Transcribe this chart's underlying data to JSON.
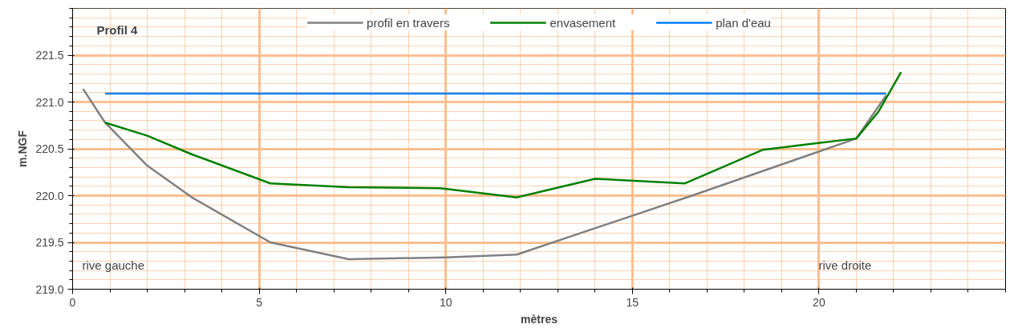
{
  "chart_data": {
    "type": "line",
    "title": "Profil 4",
    "xlabel": "mètres",
    "ylabel": "m.NGF",
    "xlim": [
      0,
      25
    ],
    "xticks": [
      0,
      5,
      10,
      15,
      20
    ],
    "ylim": [
      219.0,
      222.0
    ],
    "yticks": [
      {
        "value": 219.0,
        "label": "219.0"
      },
      {
        "value": 219.5,
        "label": "219.5"
      },
      {
        "value": 220.0,
        "label": "220.0"
      },
      {
        "value": 220.5,
        "label": "220.5"
      },
      {
        "value": 221.0,
        "label": "221.0"
      },
      {
        "value": 221.5,
        "label": "221.5"
      }
    ],
    "grid": true,
    "legend": "top",
    "line_style": "solid",
    "marker": "none",
    "series": [
      {
        "name": "profil en travers",
        "color": "#808080",
        "x": [
          0.28,
          0.87,
          2.0,
          3.2,
          5.3,
          7.4,
          10.0,
          11.9,
          16.6,
          21.0,
          21.8
        ],
        "values": [
          221.14,
          220.78,
          220.32,
          219.98,
          219.5,
          219.32,
          219.34,
          219.37,
          220.0,
          220.61,
          221.07
        ]
      },
      {
        "name": "envasement",
        "color": "#008000",
        "x": [
          0.87,
          2.0,
          3.2,
          5.3,
          7.4,
          9.85,
          11.9,
          14.0,
          16.4,
          18.5,
          21.0,
          21.6,
          22.2
        ],
        "values": [
          220.78,
          220.64,
          220.44,
          220.13,
          220.09,
          220.08,
          219.98,
          220.18,
          220.13,
          220.49,
          220.61,
          220.9,
          221.32
        ]
      },
      {
        "name": "plan d'eau",
        "color": "#0080ff",
        "x": [
          0.87,
          21.8
        ],
        "values": [
          221.09,
          221.09
        ]
      }
    ],
    "annotations": [
      "rive gauche",
      "rive droite"
    ]
  }
}
